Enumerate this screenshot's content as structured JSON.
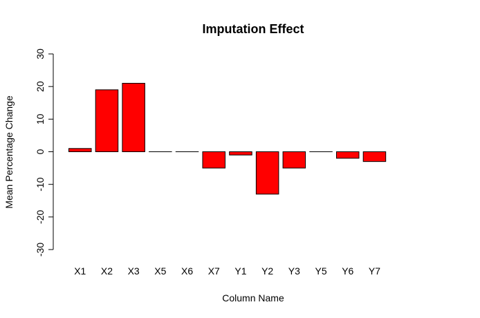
{
  "chart_data": {
    "type": "bar",
    "title": "Imputation Effect",
    "xlabel": "Column Name",
    "ylabel": "Mean Percentage Change",
    "categories": [
      "X1",
      "X2",
      "X3",
      "X5",
      "X6",
      "X7",
      "Y1",
      "Y2",
      "Y3",
      "Y5",
      "Y6",
      "Y7"
    ],
    "values": [
      1,
      19,
      21,
      0,
      0,
      -5,
      -1,
      -13,
      -5,
      0,
      -2,
      -3
    ],
    "ylim": [
      -30,
      30
    ],
    "yticks": [
      -30,
      -20,
      -10,
      0,
      10,
      20,
      30
    ],
    "grid": false,
    "legend": "none",
    "bar_color": "#ff0000",
    "bar_border_color": "#000000"
  }
}
